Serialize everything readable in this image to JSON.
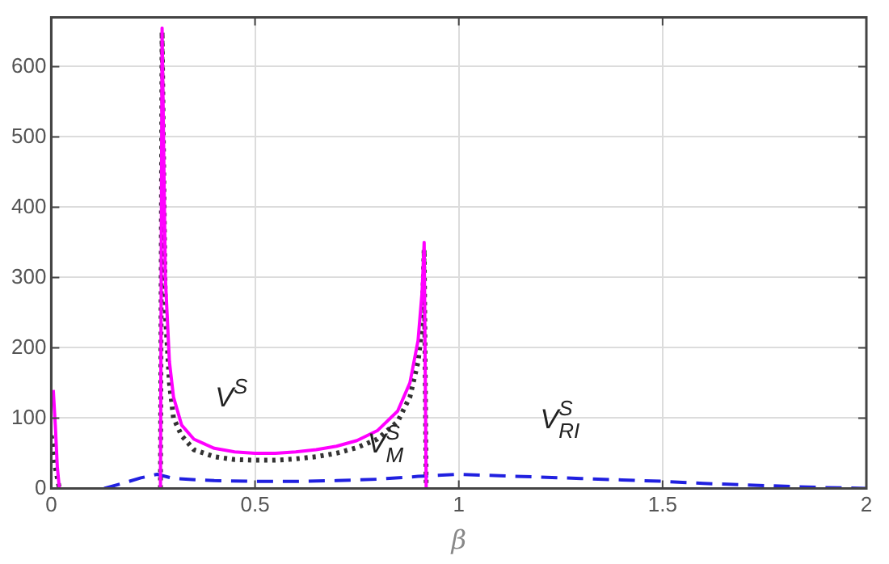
{
  "chart_data": {
    "type": "line",
    "xlabel": "β",
    "xlim": [
      0,
      2
    ],
    "xticks": [
      0,
      0.5,
      1,
      1.5,
      2
    ],
    "ylim": [
      0,
      670
    ],
    "yticks": [
      0,
      100,
      200,
      300,
      400,
      500,
      600
    ],
    "grid": true,
    "legend": false,
    "series": [
      {
        "name": "V$^{S}$",
        "color": "#ff00ff",
        "line_style": "solid",
        "x": [
          0.005,
          0.01,
          0.015,
          0.02,
          0.1,
          0.268,
          0.272,
          0.28,
          0.29,
          0.3,
          0.32,
          0.35,
          0.4,
          0.45,
          0.5,
          0.55,
          0.6,
          0.65,
          0.7,
          0.75,
          0.8,
          0.85,
          0.88,
          0.9,
          0.91,
          0.915,
          0.92
        ],
        "values": [
          140,
          90,
          30,
          0,
          null,
          0,
          655,
          300,
          180,
          130,
          90,
          70,
          57,
          52,
          50,
          50,
          52,
          55,
          60,
          68,
          82,
          110,
          150,
          210,
          280,
          350,
          0
        ]
      },
      {
        "name": "V$^{S}$$_{M}$",
        "color": "#333333",
        "line_style": "dotted",
        "x": [
          0,
          0.005,
          0.01,
          0.02,
          0.1,
          0.268,
          0.272,
          0.28,
          0.29,
          0.3,
          0.32,
          0.35,
          0.4,
          0.45,
          0.5,
          0.55,
          0.6,
          0.65,
          0.7,
          0.75,
          0.8,
          0.85,
          0.88,
          0.9,
          0.91,
          0.915,
          0.92
        ],
        "values": [
          75,
          60,
          30,
          0,
          null,
          0,
          650,
          250,
          150,
          100,
          75,
          55,
          45,
          41,
          40,
          40,
          42,
          45,
          50,
          58,
          70,
          95,
          130,
          180,
          230,
          340,
          0
        ]
      },
      {
        "name": "V$^{S}$$_{RI}$",
        "color": "#2020e0",
        "line_style": "dashed",
        "x": [
          0.13,
          0.18,
          0.22,
          0.26,
          0.3,
          0.4,
          0.5,
          0.6,
          0.7,
          0.8,
          0.9,
          1,
          1.1,
          1.2,
          1.3,
          1.4,
          1.5,
          1.6,
          1.7,
          1.8,
          1.9,
          2
        ],
        "values": [
          0,
          8,
          15,
          20,
          14,
          11,
          10,
          10,
          11,
          13,
          17,
          20,
          18,
          16,
          14,
          12,
          10,
          7,
          5,
          3,
          1,
          0
        ]
      }
    ]
  }
}
